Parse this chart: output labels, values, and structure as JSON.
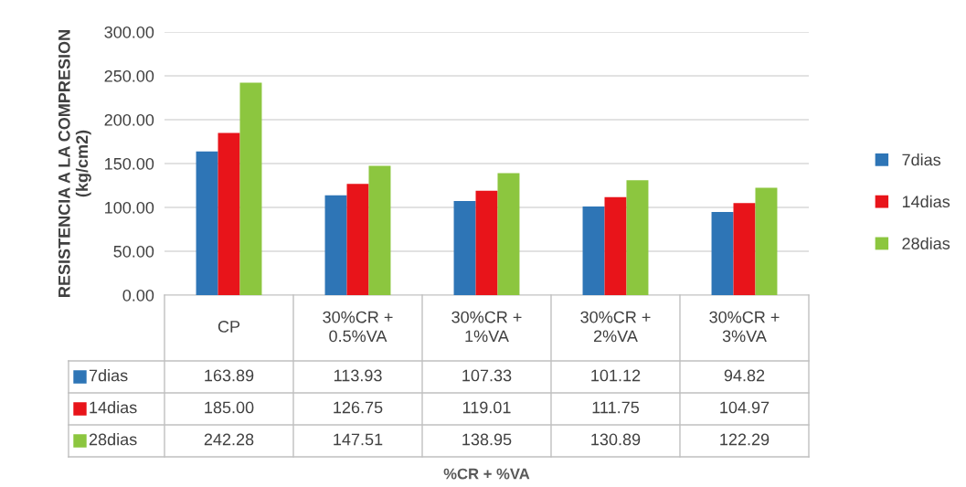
{
  "chart_data": {
    "type": "bar",
    "ylabel": "RESISTENCIA A LA COMPRESION\n(kg/cm2)",
    "annotations": [
      "%CR + %VA"
    ],
    "categories": [
      "CP",
      "30%CR +\n0.5%VA",
      "30%CR +\n1%VA",
      "30%CR +\n2%VA",
      "30%CR +\n3%VA"
    ],
    "series": [
      {
        "name": "7dias",
        "color": "#2e75b6",
        "values": [
          163.89,
          113.93,
          107.33,
          101.12,
          94.82
        ],
        "value_labels": [
          "163.89",
          "113.93",
          "107.33",
          "101.12",
          "94.82"
        ]
      },
      {
        "name": "14dias",
        "color": "#e8141a",
        "values": [
          185.0,
          126.75,
          119.01,
          111.75,
          104.97
        ],
        "value_labels": [
          "185.00",
          "126.75",
          "119.01",
          "111.75",
          "104.97"
        ]
      },
      {
        "name": "28dias",
        "color": "#8cc63f",
        "values": [
          242.28,
          147.51,
          138.95,
          130.89,
          122.29
        ],
        "value_labels": [
          "242.28",
          "147.51",
          "138.95",
          "130.89",
          "122.29"
        ]
      }
    ],
    "ylim": [
      0,
      300
    ],
    "yticks": [
      {
        "value": 0,
        "label": "0.00"
      },
      {
        "value": 50,
        "label": "50.00"
      },
      {
        "value": 100,
        "label": "100.00"
      },
      {
        "value": 150,
        "label": "150.00"
      },
      {
        "value": 200,
        "label": "200.00"
      },
      {
        "value": 250,
        "label": "250.00"
      },
      {
        "value": 300,
        "label": "300.00"
      }
    ],
    "grid": "y",
    "legend": "right"
  }
}
